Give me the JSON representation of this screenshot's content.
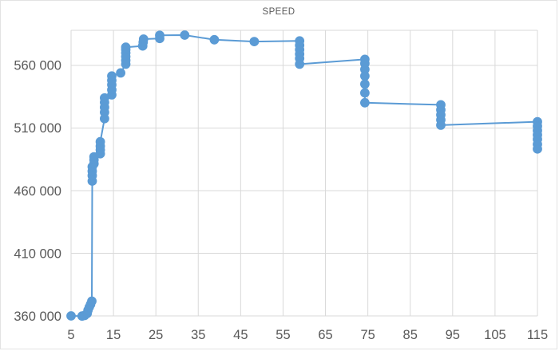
{
  "chart": {
    "title": "SPEED"
  },
  "colors": {
    "series": "#5B9BD5",
    "gridline": "#D9D9D9",
    "axis_text": "#595959",
    "title_text": "#595959",
    "background": "#FFFFFF",
    "chart_border": "#E3E3E3"
  },
  "chart_data": {
    "type": "line",
    "title": "SPEED",
    "xlabel": "",
    "ylabel": "",
    "legend": false,
    "grid": true,
    "xlim": [
      5,
      115
    ],
    "ylim": [
      360000,
      588000
    ],
    "x_ticks": [
      5,
      15,
      25,
      35,
      45,
      55,
      65,
      75,
      85,
      95,
      105,
      115
    ],
    "y_ticks": [
      {
        "value": 360000,
        "label": "360 000"
      },
      {
        "value": 410000,
        "label": "410 000"
      },
      {
        "value": 460000,
        "label": "460 000"
      },
      {
        "value": 510000,
        "label": "510 000"
      },
      {
        "value": 560000,
        "label": "560 000"
      }
    ],
    "series": [
      {
        "name": "SPEED",
        "marker": "circle",
        "points": [
          [
            5.0,
            360000
          ],
          [
            7.6,
            359900
          ],
          [
            8.2,
            360400
          ],
          [
            8.8,
            362000
          ],
          [
            9.0,
            364500
          ],
          [
            9.3,
            367000
          ],
          [
            9.6,
            369200
          ],
          [
            9.9,
            371800
          ],
          [
            10.0,
            467600
          ],
          [
            10.0,
            472000
          ],
          [
            10.0,
            475500
          ],
          [
            10.0,
            479000
          ],
          [
            10.4,
            481500
          ],
          [
            10.4,
            484500
          ],
          [
            10.4,
            487000
          ],
          [
            11.9,
            489500
          ],
          [
            11.9,
            492500
          ],
          [
            11.9,
            495500
          ],
          [
            11.9,
            499000
          ],
          [
            12.9,
            517500
          ],
          [
            12.9,
            522500
          ],
          [
            12.9,
            526500
          ],
          [
            12.9,
            530500
          ],
          [
            12.9,
            534000
          ],
          [
            14.6,
            536500
          ],
          [
            14.6,
            540500
          ],
          [
            14.6,
            544500
          ],
          [
            14.6,
            548000
          ],
          [
            14.6,
            551500
          ],
          [
            16.7,
            554000
          ],
          [
            17.9,
            561000
          ],
          [
            17.9,
            564000
          ],
          [
            17.9,
            567000
          ],
          [
            17.9,
            570000
          ],
          [
            17.9,
            572500
          ],
          [
            17.9,
            574500
          ],
          [
            21.9,
            575500
          ],
          [
            22.0,
            578500
          ],
          [
            22.1,
            581000
          ],
          [
            25.9,
            581500
          ],
          [
            25.9,
            584000
          ],
          [
            31.8,
            584200
          ],
          [
            38.8,
            580500
          ],
          [
            48.2,
            579000
          ],
          [
            58.9,
            579500
          ],
          [
            58.9,
            576000
          ],
          [
            58.9,
            572500
          ],
          [
            58.9,
            569000
          ],
          [
            58.9,
            565500
          ],
          [
            58.9,
            561000
          ],
          [
            74.3,
            564800
          ],
          [
            74.3,
            561500
          ],
          [
            74.3,
            556800
          ],
          [
            74.3,
            551500
          ],
          [
            74.3,
            545100
          ],
          [
            74.3,
            538000
          ],
          [
            74.3,
            530200
          ],
          [
            92.2,
            528500
          ],
          [
            92.2,
            524500
          ],
          [
            92.2,
            520500
          ],
          [
            92.2,
            516500
          ],
          [
            92.2,
            512300
          ],
          [
            115.0,
            515000
          ],
          [
            115.0,
            511500
          ],
          [
            115.0,
            508000
          ],
          [
            115.0,
            504500
          ],
          [
            115.0,
            501000
          ],
          [
            115.0,
            497000
          ],
          [
            115.0,
            493300
          ]
        ]
      }
    ]
  }
}
